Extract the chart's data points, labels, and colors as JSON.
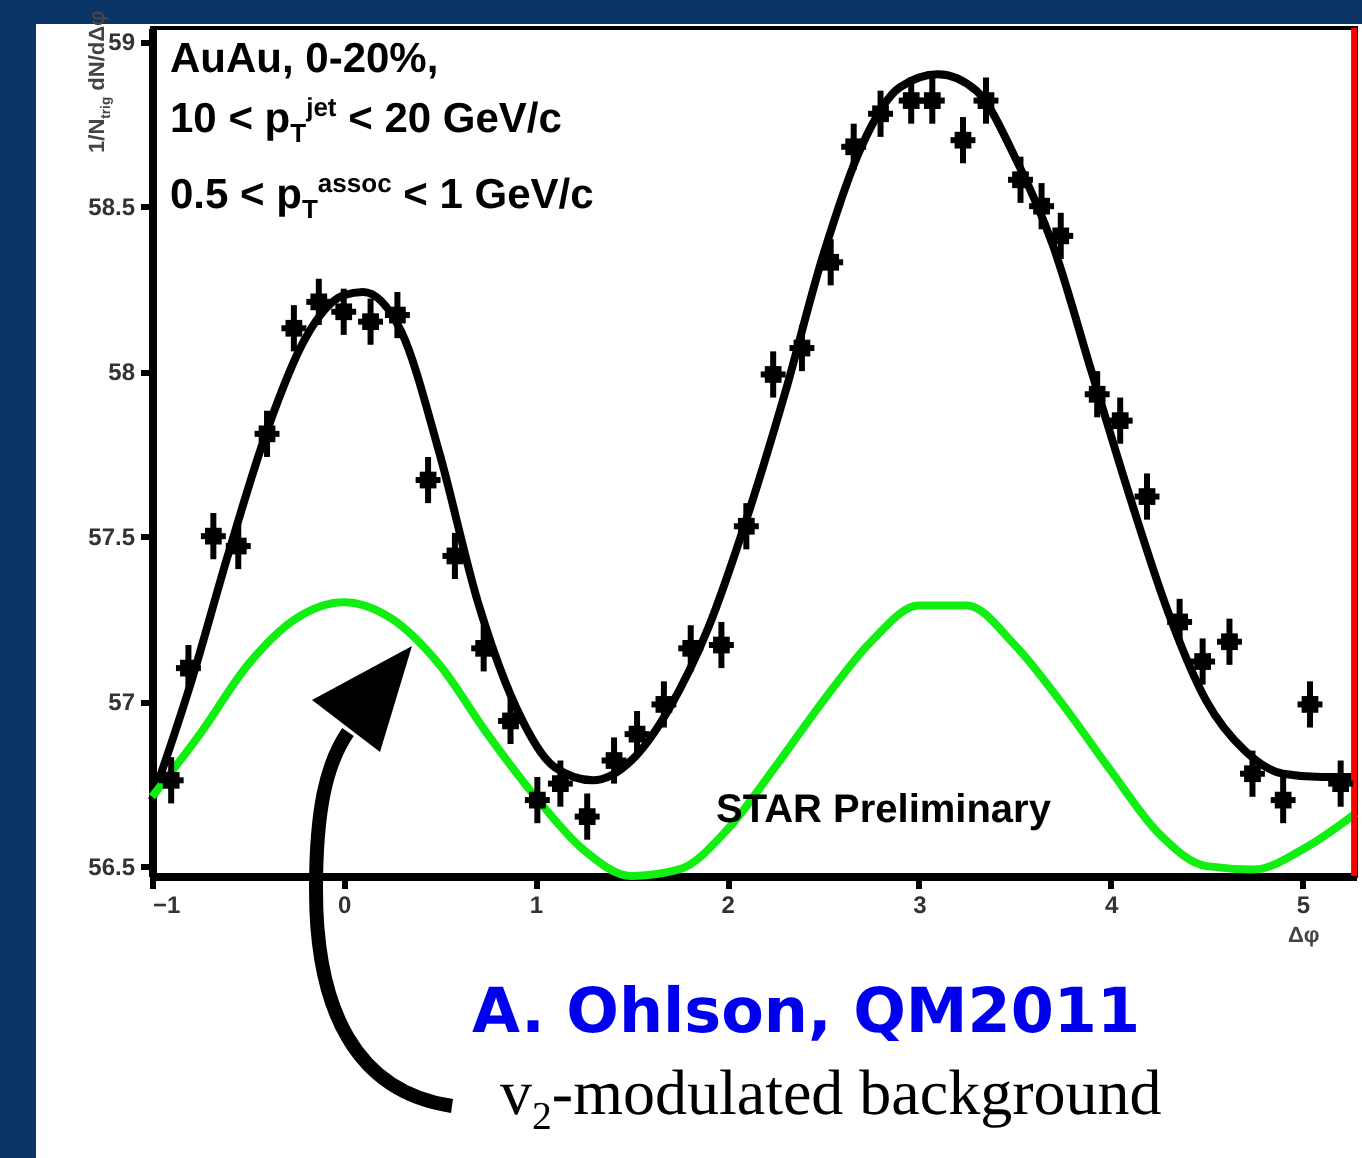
{
  "chart_data": {
    "type": "scatter",
    "xlabel": "Δφ",
    "ylabel": "1/N$_{trig}$ dN/dΔφ",
    "xlim": [
      -1.0,
      5.28
    ],
    "ylim": [
      56.47,
      59.04
    ],
    "xticks": [
      -1,
      0,
      1,
      2,
      3,
      4,
      5
    ],
    "yticks": [
      56.5,
      57,
      57.5,
      58,
      58.5,
      59
    ],
    "marker": "square",
    "annotations": [
      "AuAu, 0-20%,",
      "10 < p$_{T}$$^{jet}$ < 20 GeV/c",
      "0.5 < p$_{T}$$^{assoc}$ < 1 GeV/c",
      "STAR Preliminary",
      "A. Ohlson, QM2011",
      "v$_{2}$-modulated background"
    ],
    "ref_lines": [
      {
        "axis": "x",
        "value": 5.27,
        "color": "#ff0000"
      }
    ],
    "series": [
      {
        "color": "#000000",
        "x": [
          -0.9,
          -0.81,
          -0.68,
          -0.55,
          -0.4,
          -0.26,
          -0.13,
          0.0,
          0.14,
          0.28,
          0.44,
          0.58,
          0.73,
          0.87,
          1.01,
          1.13,
          1.27,
          1.41,
          1.53,
          1.67,
          1.81,
          1.97,
          2.1,
          2.24,
          2.39,
          2.54,
          2.66,
          2.8,
          2.96,
          3.07,
          3.23,
          3.35,
          3.53,
          3.64,
          3.74,
          3.93,
          4.05,
          4.19,
          4.36,
          4.48,
          4.62,
          4.74,
          4.9,
          5.04,
          5.2
        ],
        "values": [
          56.76,
          57.1,
          57.5,
          57.47,
          57.81,
          58.13,
          58.21,
          58.18,
          58.15,
          58.17,
          57.67,
          57.44,
          57.16,
          56.94,
          56.7,
          56.75,
          56.65,
          56.82,
          56.9,
          56.99,
          57.16,
          57.17,
          57.53,
          57.99,
          58.07,
          58.33,
          58.68,
          58.78,
          58.82,
          58.82,
          58.7,
          58.82,
          58.58,
          58.5,
          58.41,
          57.93,
          57.85,
          57.62,
          57.24,
          57.12,
          57.18,
          56.78,
          56.7,
          56.99,
          56.75
        ],
        "errors": [
          0.07,
          0.07,
          0.07,
          0.07,
          0.07,
          0.07,
          0.07,
          0.07,
          0.07,
          0.07,
          0.07,
          0.07,
          0.07,
          0.07,
          0.07,
          0.07,
          0.07,
          0.07,
          0.07,
          0.07,
          0.07,
          0.07,
          0.07,
          0.07,
          0.07,
          0.07,
          0.07,
          0.07,
          0.07,
          0.07,
          0.07,
          0.07,
          0.07,
          0.07,
          0.07,
          0.07,
          0.07,
          0.07,
          0.07,
          0.07,
          0.07,
          0.07,
          0.07,
          0.07,
          0.07
        ],
        "xerrors": [
          0.065,
          0.065,
          0.065,
          0.065,
          0.065,
          0.065,
          0.065,
          0.065,
          0.065,
          0.065,
          0.065,
          0.065,
          0.065,
          0.065,
          0.065,
          0.065,
          0.065,
          0.065,
          0.065,
          0.065,
          0.065,
          0.065,
          0.065,
          0.065,
          0.065,
          0.065,
          0.065,
          0.065,
          0.065,
          0.065,
          0.065,
          0.065,
          0.065,
          0.065,
          0.065,
          0.065,
          0.065,
          0.065,
          0.065,
          0.065,
          0.065,
          0.065,
          0.065,
          0.065,
          0.065
        ]
      },
      {
        "type": "line",
        "marker": "none",
        "color": "#000000",
        "x": [
          -1,
          -0.8,
          -0.6,
          -0.4,
          -0.2,
          0,
          0.1,
          0.3,
          0.5,
          0.7,
          0.9,
          1.1,
          1.3,
          1.5,
          1.7,
          1.9,
          2.1,
          2.3,
          2.5,
          2.7,
          2.9,
          3.1,
          3.3,
          3.5,
          3.7,
          3.9,
          4.1,
          4.3,
          4.5,
          4.7,
          4.9,
          5.1,
          5.28
        ],
        "values": [
          56.7,
          57.05,
          57.45,
          57.82,
          58.1,
          58.23,
          58.24,
          58.12,
          57.75,
          57.3,
          56.98,
          56.8,
          56.76,
          56.82,
          56.98,
          57.22,
          57.55,
          57.93,
          58.35,
          58.68,
          58.86,
          58.9,
          58.85,
          58.65,
          58.38,
          58.0,
          57.62,
          57.27,
          57.0,
          56.85,
          56.78,
          56.77,
          56.77
        ]
      },
      {
        "type": "line",
        "marker": "none",
        "color": "#11ee11",
        "x": [
          -1,
          -0.75,
          -0.5,
          -0.25,
          0,
          0.25,
          0.5,
          0.75,
          1.0,
          1.25,
          1.5,
          1.75,
          2.0,
          2.25,
          2.5,
          2.75,
          3.0,
          3.25,
          3.5,
          3.75,
          4.0,
          4.25,
          4.5,
          4.75,
          5.0,
          5.28
        ],
        "values": [
          56.71,
          56.9,
          57.11,
          57.25,
          57.3,
          57.25,
          57.11,
          56.9,
          56.71,
          56.55,
          56.47,
          56.49,
          56.61,
          56.8,
          57.0,
          57.18,
          57.29,
          57.29,
          57.17,
          56.99,
          56.79,
          56.6,
          56.5,
          56.49,
          56.55,
          56.66
        ]
      }
    ]
  }
}
